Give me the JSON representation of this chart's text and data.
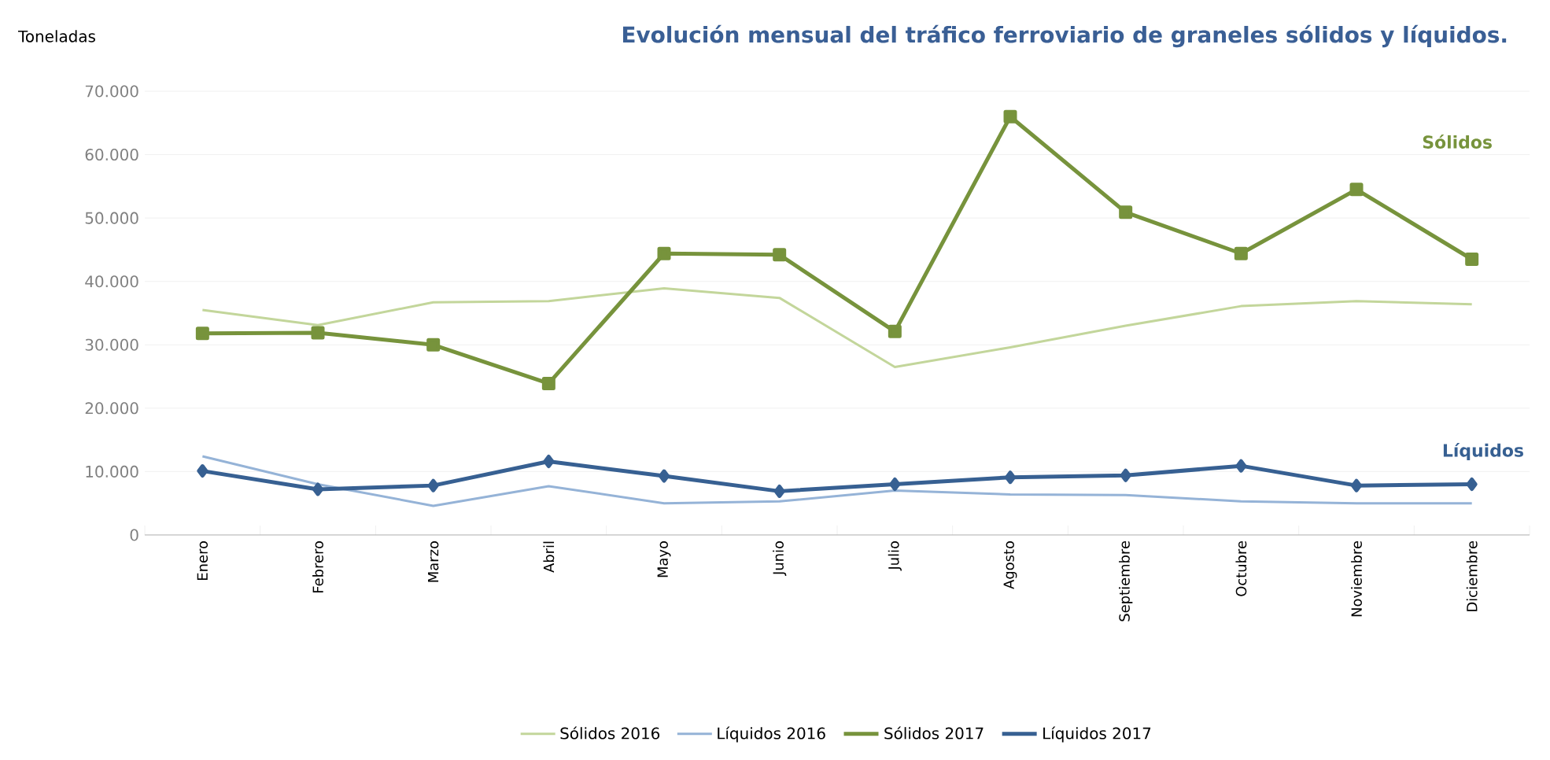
{
  "chart_data": {
    "type": "line",
    "title": "Evolución mensual del tráfico ferroviario de graneles sólidos y líquidos.",
    "ylabel": "Toneladas",
    "categories": [
      "Enero",
      "Febrero",
      "Marzo",
      "Abril",
      "Mayo",
      "Junio",
      "Julio",
      "Agosto",
      "Septiembre",
      "Octubre",
      "Noviembre",
      "Diciembre"
    ],
    "series": [
      {
        "name": "Sólidos 2016",
        "color": "#c3d69b",
        "marker": "none",
        "values": [
          35500,
          33100,
          36700,
          36900,
          38900,
          37400,
          26500,
          29600,
          33000,
          36100,
          36900,
          36400
        ]
      },
      {
        "name": "Líquidos 2016",
        "color": "#95b3d7",
        "marker": "none",
        "values": [
          12400,
          8000,
          4600,
          7700,
          5000,
          5300,
          7000,
          6400,
          6300,
          5300,
          5000,
          5000
        ]
      },
      {
        "name": "Sólidos 2017",
        "color": "#77933c",
        "marker": "square",
        "values": [
          31800,
          31900,
          30000,
          23900,
          44400,
          44200,
          32100,
          66000,
          50900,
          44400,
          54500,
          43500
        ]
      },
      {
        "name": "Líquidos 2017",
        "color": "#376092",
        "marker": "diamond",
        "values": [
          10100,
          7200,
          7800,
          11600,
          9300,
          6900,
          8000,
          9100,
          9400,
          10900,
          7800,
          8000
        ]
      }
    ],
    "annotations": [
      "Sólidos",
      "Líquidos"
    ],
    "ylim": [
      0,
      70000
    ],
    "yticks": [
      {
        "value": 0,
        "label": "0"
      },
      {
        "value": 10000,
        "label": "10.000"
      },
      {
        "value": 20000,
        "label": "20.000"
      },
      {
        "value": 30000,
        "label": "30.000"
      },
      {
        "value": 40000,
        "label": "40.000"
      },
      {
        "value": 50000,
        "label": "50.000"
      },
      {
        "value": 60000,
        "label": "60.000"
      },
      {
        "value": 70000,
        "label": "70.000"
      }
    ],
    "grid": "y",
    "legend": "bottom"
  }
}
